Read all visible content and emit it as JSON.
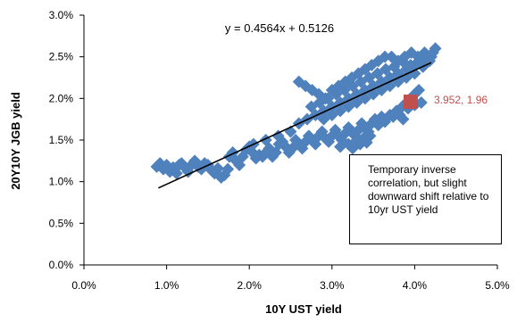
{
  "chart_data": {
    "type": "scatter",
    "title": "",
    "xlabel": "10Y  UST  yield",
    "ylabel": "20Y10Y  JGB  yield",
    "xlim": [
      0.0,
      5.0
    ],
    "ylim": [
      0.0,
      3.0
    ],
    "x_ticks": [
      "0.0%",
      "1.0%",
      "2.0%",
      "3.0%",
      "4.0%",
      "5.0%"
    ],
    "y_ticks": [
      "0.0%",
      "0.5%",
      "1.0%",
      "1.5%",
      "2.0%",
      "2.5%",
      "3.0%"
    ],
    "grid": false,
    "series": [
      {
        "marker": "diamond",
        "color": "#4F81BD",
        "points": [
          [
            0.88,
            1.18
          ],
          [
            0.92,
            1.22
          ],
          [
            0.96,
            1.15
          ],
          [
            1.0,
            1.2
          ],
          [
            1.04,
            1.12
          ],
          [
            1.08,
            1.17
          ],
          [
            1.12,
            1.1
          ],
          [
            1.15,
            1.2
          ],
          [
            1.18,
            1.22
          ],
          [
            1.22,
            1.17
          ],
          [
            1.26,
            1.12
          ],
          [
            1.3,
            1.2
          ],
          [
            1.34,
            1.25
          ],
          [
            1.38,
            1.18
          ],
          [
            1.42,
            1.15
          ],
          [
            1.46,
            1.22
          ],
          [
            1.5,
            1.2
          ],
          [
            1.54,
            1.14
          ],
          [
            1.58,
            1.1
          ],
          [
            1.62,
            1.16
          ],
          [
            1.66,
            1.05
          ],
          [
            1.7,
            1.08
          ],
          [
            1.74,
            1.15
          ],
          [
            1.76,
            1.3
          ],
          [
            1.8,
            1.35
          ],
          [
            1.84,
            1.25
          ],
          [
            1.88,
            1.2
          ],
          [
            1.92,
            1.3
          ],
          [
            1.96,
            1.38
          ],
          [
            2.0,
            1.42
          ],
          [
            2.04,
            1.35
          ],
          [
            2.08,
            1.28
          ],
          [
            2.12,
            1.32
          ],
          [
            2.16,
            1.3
          ],
          [
            2.2,
            1.35
          ],
          [
            2.24,
            1.4
          ],
          [
            2.28,
            1.3
          ],
          [
            2.32,
            1.35
          ],
          [
            2.36,
            1.45
          ],
          [
            2.4,
            1.48
          ],
          [
            2.44,
            1.42
          ],
          [
            2.48,
            1.35
          ],
          [
            2.52,
            1.4
          ],
          [
            2.56,
            1.5
          ],
          [
            2.6,
            1.45
          ],
          [
            2.64,
            1.4
          ],
          [
            2.68,
            1.48
          ],
          [
            2.72,
            1.55
          ],
          [
            2.76,
            1.5
          ],
          [
            2.8,
            1.45
          ],
          [
            2.84,
            1.55
          ],
          [
            2.88,
            1.6
          ],
          [
            2.92,
            1.52
          ],
          [
            2.96,
            1.48
          ],
          [
            3.0,
            1.55
          ],
          [
            3.04,
            1.62
          ],
          [
            3.08,
            1.55
          ],
          [
            3.12,
            1.5
          ],
          [
            3.16,
            1.58
          ],
          [
            3.2,
            1.65
          ],
          [
            3.24,
            1.6
          ],
          [
            3.28,
            1.55
          ],
          [
            3.32,
            1.62
          ],
          [
            3.36,
            1.7
          ],
          [
            3.4,
            1.65
          ],
          [
            3.44,
            1.6
          ],
          [
            3.48,
            1.7
          ],
          [
            3.52,
            1.75
          ],
          [
            3.56,
            1.68
          ],
          [
            3.6,
            1.78
          ],
          [
            3.64,
            1.72
          ],
          [
            3.7,
            1.8
          ],
          [
            3.74,
            1.78
          ],
          [
            3.78,
            1.85
          ],
          [
            3.82,
            1.8
          ],
          [
            3.86,
            1.75
          ],
          [
            3.3,
            1.5
          ],
          [
            3.34,
            1.45
          ],
          [
            3.38,
            1.52
          ],
          [
            3.42,
            1.47
          ],
          [
            3.46,
            1.55
          ],
          [
            3.2,
            1.45
          ],
          [
            3.25,
            1.4
          ],
          [
            3.15,
            1.47
          ],
          [
            3.1,
            1.42
          ],
          [
            2.05,
            1.45
          ],
          [
            2.2,
            1.5
          ],
          [
            2.35,
            1.55
          ],
          [
            2.5,
            1.6
          ],
          [
            2.6,
            1.7
          ],
          [
            2.7,
            1.75
          ],
          [
            2.8,
            1.8
          ],
          [
            2.9,
            1.85
          ],
          [
            3.0,
            1.9
          ],
          [
            3.1,
            1.95
          ],
          [
            3.2,
            2.0
          ],
          [
            3.3,
            2.05
          ],
          [
            3.4,
            2.1
          ],
          [
            3.5,
            2.15
          ],
          [
            3.6,
            2.2
          ],
          [
            3.7,
            2.25
          ],
          [
            3.8,
            2.3
          ],
          [
            3.9,
            2.35
          ],
          [
            4.0,
            2.4
          ],
          [
            4.1,
            2.45
          ],
          [
            4.2,
            2.5
          ],
          [
            4.25,
            2.6
          ],
          [
            4.22,
            2.55
          ],
          [
            4.15,
            2.5
          ],
          [
            4.05,
            2.45
          ],
          [
            3.95,
            2.4
          ],
          [
            3.85,
            2.45
          ],
          [
            3.75,
            2.38
          ],
          [
            3.65,
            2.35
          ],
          [
            3.55,
            2.3
          ],
          [
            3.45,
            2.25
          ],
          [
            3.35,
            2.2
          ],
          [
            3.25,
            2.15
          ],
          [
            3.15,
            2.1
          ],
          [
            3.05,
            2.05
          ],
          [
            2.95,
            2.0
          ],
          [
            2.85,
            1.95
          ],
          [
            2.75,
            1.9
          ],
          [
            2.6,
            2.2
          ],
          [
            2.68,
            2.15
          ],
          [
            2.76,
            2.1
          ],
          [
            2.84,
            2.05
          ],
          [
            2.92,
            2.0
          ],
          [
            3.0,
            2.1
          ],
          [
            3.08,
            2.15
          ],
          [
            3.16,
            2.2
          ],
          [
            3.24,
            2.25
          ],
          [
            3.32,
            2.3
          ],
          [
            3.4,
            2.35
          ],
          [
            3.48,
            2.4
          ],
          [
            3.56,
            2.45
          ],
          [
            3.64,
            2.5
          ],
          [
            3.72,
            2.5
          ],
          [
            3.8,
            2.45
          ],
          [
            3.88,
            2.5
          ],
          [
            3.96,
            2.55
          ],
          [
            4.04,
            2.5
          ],
          [
            4.12,
            2.55
          ],
          [
            4.18,
            2.45
          ],
          [
            4.1,
            2.38
          ],
          [
            4.0,
            2.3
          ],
          [
            3.9,
            2.25
          ],
          [
            3.8,
            2.2
          ],
          [
            3.7,
            2.15
          ],
          [
            3.6,
            2.1
          ],
          [
            3.5,
            2.05
          ],
          [
            3.4,
            2.0
          ],
          [
            3.3,
            1.95
          ],
          [
            3.2,
            1.9
          ],
          [
            3.1,
            1.85
          ],
          [
            3.0,
            1.8
          ],
          [
            2.9,
            1.75
          ],
          [
            3.9,
            1.95
          ],
          [
            3.95,
            2.0
          ],
          [
            4.0,
            2.05
          ],
          [
            4.05,
            2.1
          ],
          [
            3.85,
            1.9
          ],
          [
            3.92,
            1.88
          ],
          [
            4.0,
            1.92
          ],
          [
            4.08,
            1.95
          ]
        ]
      }
    ],
    "highlight": {
      "x": 3.952,
      "y": 1.96,
      "label": "3.952, 1.96",
      "marker": "square",
      "color": "#C0504D"
    },
    "trendline": {
      "slope": 0.4564,
      "intercept": 0.5126,
      "x_range": [
        0.9,
        4.2
      ],
      "label": "y = 0.4564x  + 0.5126",
      "color": "#000000"
    },
    "annotation": "Temporary inverse correlation, but slight downward shift relative to 10yr UST yield"
  }
}
